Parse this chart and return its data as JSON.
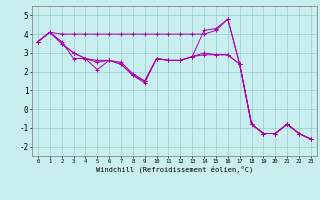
{
  "xlabel": "Windchill (Refroidissement éolien,°C)",
  "bg_color": "#c8eef0",
  "line_color": "#aa00aa",
  "grid_color": "#99cccc",
  "xlim": [
    -0.5,
    23.5
  ],
  "ylim": [
    -2.5,
    5.5
  ],
  "xticks": [
    0,
    1,
    2,
    3,
    4,
    5,
    6,
    7,
    8,
    9,
    10,
    11,
    12,
    13,
    14,
    15,
    16,
    17,
    18,
    19,
    20,
    21,
    22,
    23
  ],
  "yticks": [
    -2,
    -1,
    0,
    1,
    2,
    3,
    4,
    5
  ],
  "series": [
    [
      3.6,
      4.1,
      4.0,
      4.0,
      4.0,
      4.0,
      4.0,
      4.0,
      4.0,
      4.0,
      4.0,
      4.0,
      4.0,
      4.0,
      4.0,
      4.2,
      4.8,
      2.4,
      -0.8,
      -1.3,
      -1.3,
      -0.8,
      -1.3,
      -1.6
    ],
    [
      3.6,
      4.1,
      3.6,
      2.7,
      2.7,
      2.1,
      2.6,
      2.5,
      1.9,
      1.5,
      2.7,
      2.6,
      2.6,
      2.8,
      4.2,
      4.3,
      4.8,
      2.4,
      -0.8,
      -1.3,
      -1.3,
      -0.8,
      -1.3,
      -1.6
    ],
    [
      3.6,
      4.1,
      3.5,
      3.0,
      2.7,
      2.6,
      2.6,
      2.4,
      1.8,
      1.5,
      2.7,
      2.6,
      2.6,
      2.8,
      3.0,
      2.9,
      2.9,
      2.4,
      -0.8,
      -1.3,
      -1.3,
      -0.8,
      -1.3,
      -1.6
    ],
    [
      3.6,
      4.1,
      3.5,
      3.0,
      2.7,
      2.5,
      2.6,
      2.4,
      1.8,
      1.4,
      2.7,
      2.6,
      2.6,
      2.8,
      2.9,
      2.9,
      2.9,
      2.4,
      -0.8,
      -1.3,
      -1.3,
      -0.8,
      -1.3,
      -1.6
    ]
  ]
}
